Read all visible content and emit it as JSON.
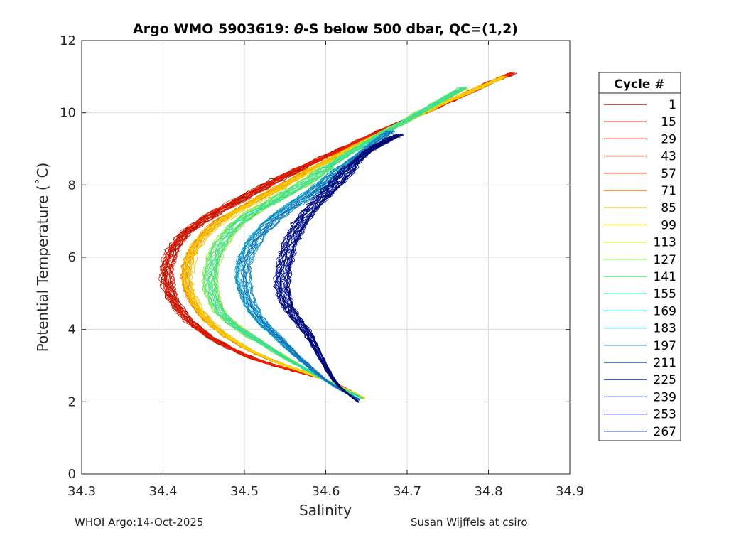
{
  "chart_data": {
    "type": "line",
    "title_prefix": "Argo WMO 5903619: ",
    "title_theta": "θ",
    "title_suffix": "-S below 500 dbar,  QC=(1,2)",
    "xlabel": "Salinity",
    "ylabel": "Potential Temperature (˚C)",
    "xlim": [
      34.3,
      34.9
    ],
    "ylim": [
      0,
      12
    ],
    "xticks": [
      "34.3",
      "34.4",
      "34.5",
      "34.6",
      "34.7",
      "34.8",
      "34.9"
    ],
    "yticks": [
      "0",
      "2",
      "4",
      "6",
      "8",
      "10",
      "12"
    ],
    "grid": true,
    "legend": {
      "title": "Cycle #",
      "placement": "right",
      "entries": [
        "1",
        "15",
        "29",
        "43",
        "57",
        "71",
        "85",
        "99",
        "113",
        "127",
        "141",
        "155",
        "169",
        "183",
        "197",
        "211",
        "225",
        "239",
        "253",
        "267"
      ],
      "colors": [
        "#6a0000",
        "#a00000",
        "#cc0000",
        "#e61a00",
        "#ee3300",
        "#dd6600",
        "#d4a000",
        "#ffdd00",
        "#bbee22",
        "#77e040",
        "#33dd66",
        "#22ddaa",
        "#22cccc",
        "#1199cc",
        "#1166bb",
        "#0033aa",
        "#0022cc",
        "#0011aa",
        "#000088",
        "#001a66"
      ]
    },
    "series_profiles": [
      {
        "cycle_group": "1-60",
        "color_range": [
          "#6a0000",
          "#ff2200"
        ],
        "points": [
          [
            34.646,
            2.1
          ],
          [
            34.6,
            2.6
          ],
          [
            34.5,
            3.3
          ],
          [
            34.43,
            4.3
          ],
          [
            34.405,
            5.5
          ],
          [
            34.43,
            6.7
          ],
          [
            34.52,
            7.9
          ],
          [
            34.62,
            9.0
          ],
          [
            34.73,
            10.1
          ],
          [
            34.83,
            11.1
          ]
        ]
      },
      {
        "cycle_group": "60-110",
        "color_range": [
          "#dd6600",
          "#ffdd00"
        ],
        "points": [
          [
            34.648,
            2.1
          ],
          [
            34.6,
            2.6
          ],
          [
            34.51,
            3.4
          ],
          [
            34.45,
            4.4
          ],
          [
            34.43,
            5.6
          ],
          [
            34.46,
            6.8
          ],
          [
            34.55,
            8.0
          ],
          [
            34.63,
            9.0
          ],
          [
            34.72,
            10.0
          ],
          [
            34.82,
            11.0
          ]
        ]
      },
      {
        "cycle_group": "110-150",
        "color_range": [
          "#bbee22",
          "#22ddaa"
        ],
        "points": [
          [
            34.645,
            2.1
          ],
          [
            34.6,
            2.6
          ],
          [
            34.53,
            3.5
          ],
          [
            34.47,
            4.5
          ],
          [
            34.46,
            5.7
          ],
          [
            34.49,
            6.9
          ],
          [
            34.57,
            8.0
          ],
          [
            34.63,
            8.9
          ],
          [
            34.7,
            9.8
          ],
          [
            34.77,
            10.7
          ]
        ]
      },
      {
        "cycle_group": "150-200",
        "color_range": [
          "#22cccc",
          "#1166bb"
        ],
        "points": [
          [
            34.642,
            2.05
          ],
          [
            34.6,
            2.6
          ],
          [
            34.55,
            3.6
          ],
          [
            34.51,
            4.6
          ],
          [
            34.5,
            5.8
          ],
          [
            34.53,
            6.9
          ],
          [
            34.59,
            7.9
          ],
          [
            34.64,
            8.8
          ],
          [
            34.68,
            9.5
          ]
        ]
      },
      {
        "cycle_group": "200-267",
        "color_range": [
          "#0022cc",
          "#000055"
        ],
        "points": [
          [
            34.64,
            2.0
          ],
          [
            34.61,
            2.6
          ],
          [
            34.58,
            3.8
          ],
          [
            34.55,
            4.8
          ],
          [
            34.55,
            5.9
          ],
          [
            34.57,
            7.0
          ],
          [
            34.61,
            8.0
          ],
          [
            34.65,
            8.9
          ],
          [
            34.69,
            9.4
          ]
        ]
      }
    ]
  },
  "footer": {
    "left": "WHOI Argo:14-Oct-2025",
    "right": "Susan Wijffels at csiro"
  }
}
